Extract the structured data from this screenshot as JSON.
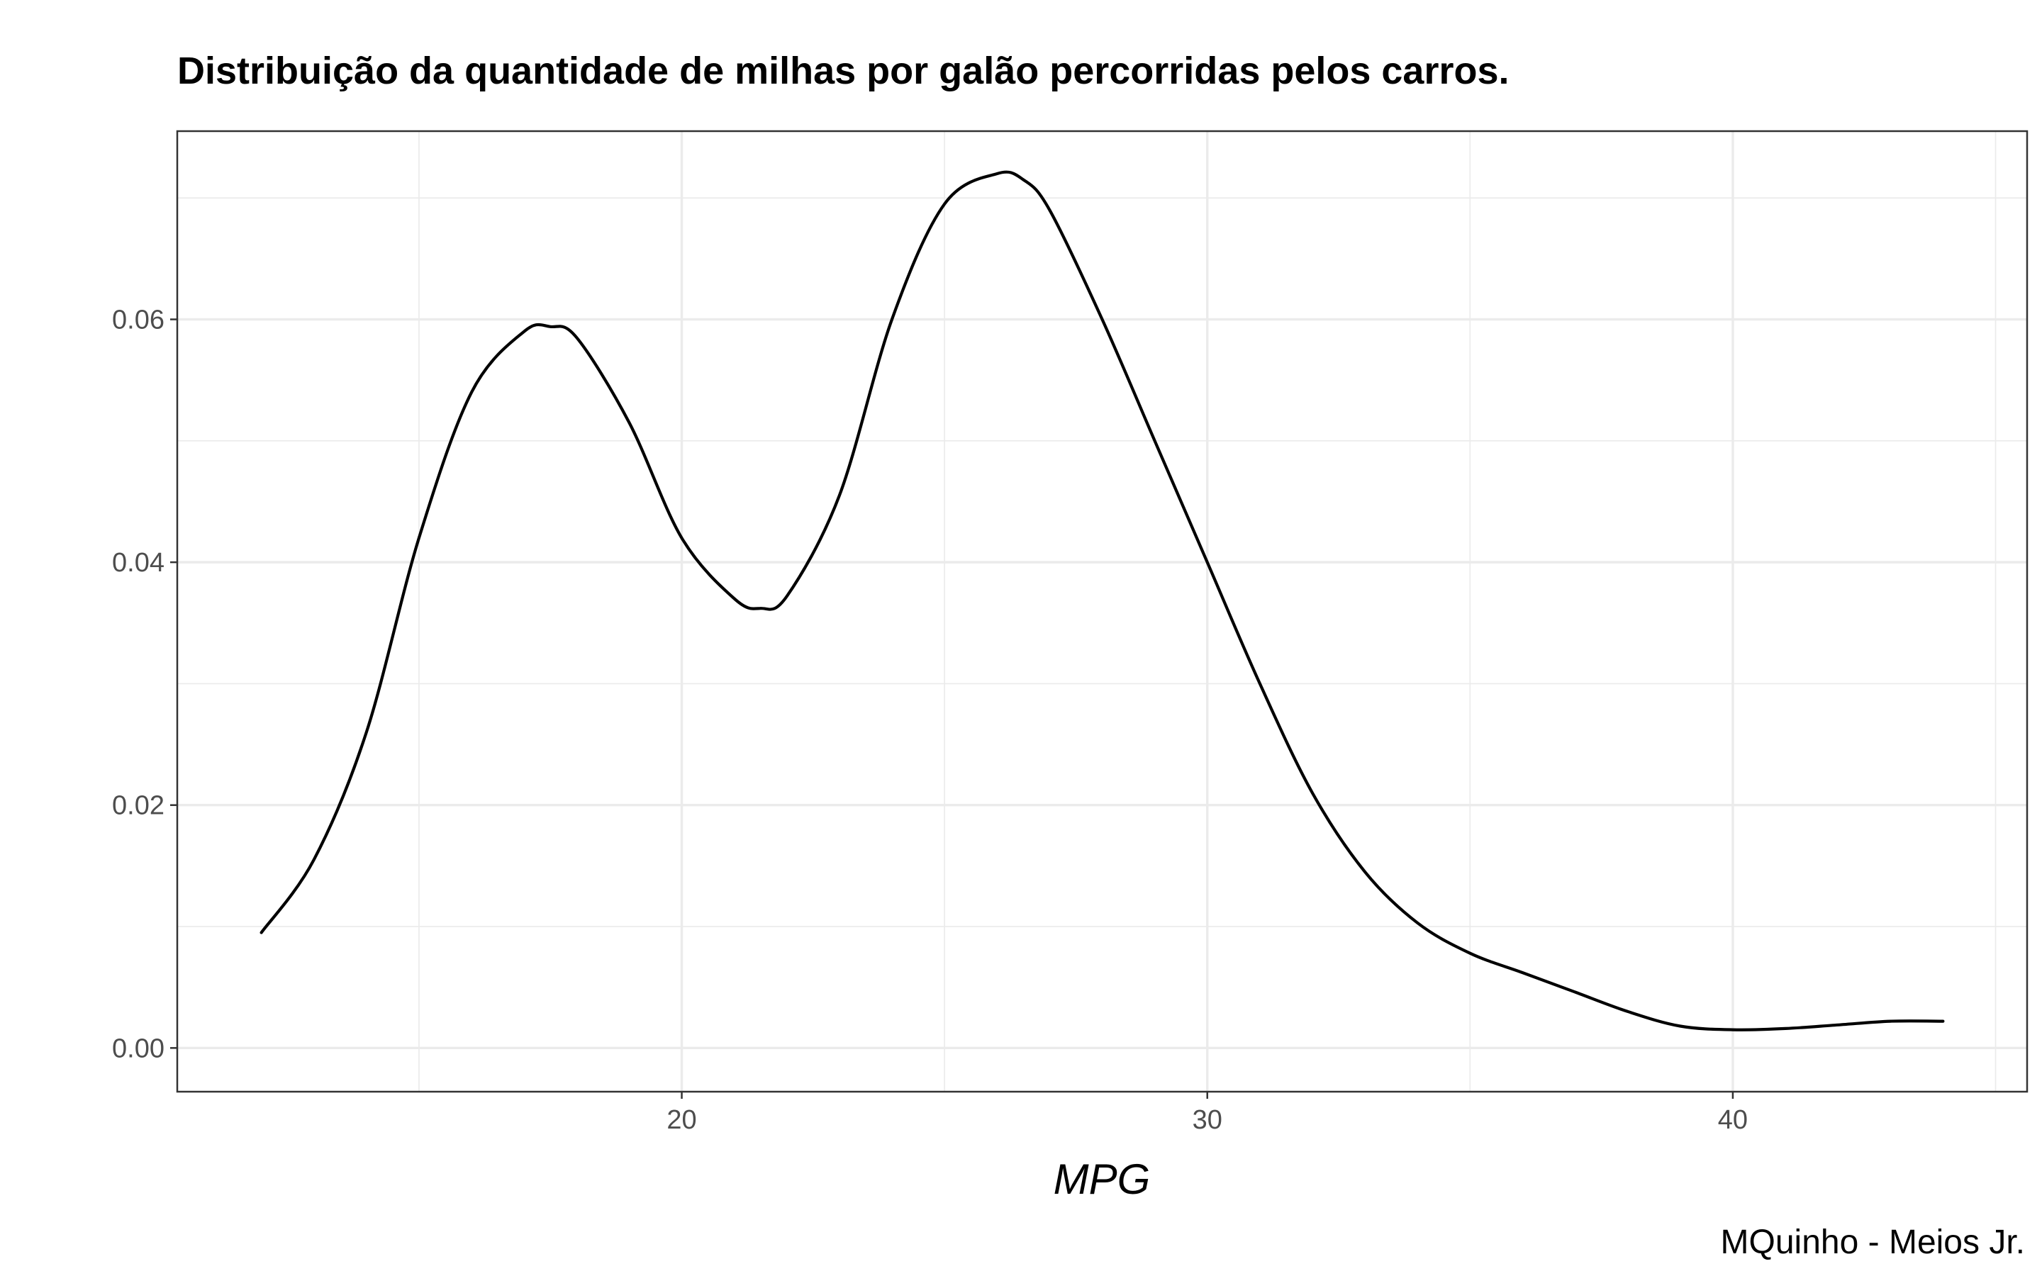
{
  "chart_data": {
    "type": "line",
    "title": "Distribuição da quantidade de milhas por galão percorridas pelos carros.",
    "xlabel": "MPG",
    "ylabel": "",
    "caption": "MQuinho - Meios Jr.",
    "xlim": [
      10.4,
      45.6
    ],
    "ylim": [
      -0.0036,
      0.0755
    ],
    "x_ticks": [
      20,
      30,
      40
    ],
    "x_tick_labels": [
      "20",
      "30",
      "40"
    ],
    "y_ticks": [
      0.0,
      0.02,
      0.04,
      0.06
    ],
    "y_tick_labels": [
      "0.00",
      "0.02",
      "0.04",
      "0.06"
    ],
    "x_minor_ticks": [
      15,
      25,
      35,
      45
    ],
    "y_minor_ticks": [
      0.01,
      0.03,
      0.05,
      0.07
    ],
    "grid": true,
    "series": [
      {
        "x": [
          12.0,
          13.0,
          14.0,
          15.0,
          16.0,
          17.0,
          17.5,
          18.0,
          19.0,
          20.0,
          21.0,
          21.5,
          22.0,
          23.0,
          24.0,
          25.0,
          26.0,
          26.5,
          27.0,
          28.0,
          29.0,
          30.0,
          31.0,
          32.0,
          33.0,
          34.0,
          35.0,
          36.0,
          37.0,
          38.0,
          39.0,
          40.0,
          41.0,
          42.0,
          43.0,
          44.0
        ],
        "y": [
          0.0095,
          0.0155,
          0.026,
          0.042,
          0.054,
          0.059,
          0.0594,
          0.0585,
          0.0515,
          0.042,
          0.037,
          0.0362,
          0.0372,
          0.0455,
          0.06,
          0.0695,
          0.072,
          0.0715,
          0.069,
          0.06,
          0.05,
          0.04,
          0.03,
          0.021,
          0.0145,
          0.0103,
          0.0078,
          0.0062,
          0.0046,
          0.003,
          0.0018,
          0.0015,
          0.0016,
          0.0019,
          0.0022,
          0.0022
        ]
      }
    ],
    "colors": {
      "line": "#000000",
      "grid": "#ebebeb",
      "border": "#333333",
      "tick_text": "#4d4d4d"
    }
  }
}
